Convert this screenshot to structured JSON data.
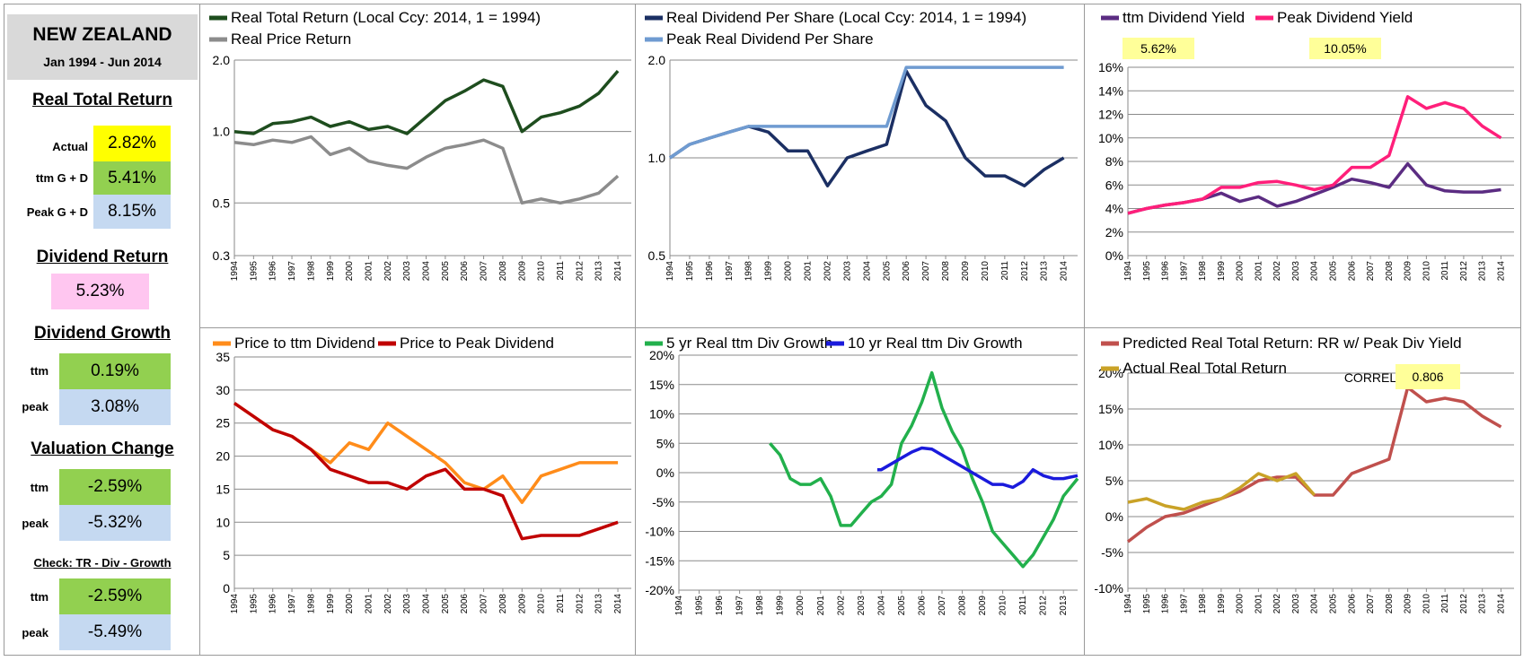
{
  "summary": {
    "country": "NEW ZEALAND",
    "period": "Jan 1994 - Jun 2014",
    "real_total_return": {
      "heading": "Real Total Return",
      "rows": [
        {
          "label": "Actual",
          "value": "2.82%",
          "color": "#ffff00"
        },
        {
          "label": "ttm  G + D",
          "value": "5.41%",
          "color": "#92d050"
        },
        {
          "label": "Peak  G + D",
          "value": "8.15%",
          "color": "#c5d9f1"
        }
      ]
    },
    "dividend_return": {
      "heading": "Dividend Return",
      "value": "5.23%",
      "color": "#ffc6f0"
    },
    "dividend_growth": {
      "heading": "Dividend Growth",
      "rows": [
        {
          "label": "ttm",
          "value": "0.19%",
          "color": "#92d050"
        },
        {
          "label": "peak",
          "value": "3.08%",
          "color": "#c5d9f1"
        }
      ]
    },
    "valuation_change": {
      "heading": "Valuation Change",
      "rows": [
        {
          "label": "ttm",
          "value": "-2.59%",
          "color": "#92d050"
        },
        {
          "label": "peak",
          "value": "-5.32%",
          "color": "#c5d9f1"
        }
      ]
    },
    "check": {
      "heading": "Check: TR - Div - Growth",
      "rows": [
        {
          "label": "ttm",
          "value": "-2.59%",
          "color": "#92d050"
        },
        {
          "label": "peak",
          "value": "-5.49%",
          "color": "#c5d9f1"
        }
      ]
    }
  },
  "chart_data": [
    {
      "type": "line",
      "log_scale": true,
      "x": [
        "1994",
        "1995",
        "1996",
        "1997",
        "1998",
        "1999",
        "2000",
        "2001",
        "2002",
        "2003",
        "2004",
        "2005",
        "2006",
        "2007",
        "2008",
        "2009",
        "2010",
        "2011",
        "2012",
        "2013",
        "2014"
      ],
      "y_ticks": [
        "0.3",
        "0.5",
        "1.0",
        "2.0"
      ],
      "ylim": [
        0.3,
        2.0
      ],
      "series": [
        {
          "name": "Real Total Return (Local Ccy: 2014, 1 = 1994)",
          "color": "#1e4d1e",
          "values": [
            1.0,
            0.98,
            1.08,
            1.1,
            1.15,
            1.05,
            1.1,
            1.02,
            1.05,
            0.98,
            1.15,
            1.35,
            1.48,
            1.65,
            1.55,
            1.0,
            1.15,
            1.2,
            1.28,
            1.45,
            1.8
          ]
        },
        {
          "name": "Real Price Return",
          "color": "#8c8c8c",
          "values": [
            0.9,
            0.88,
            0.92,
            0.9,
            0.95,
            0.8,
            0.85,
            0.75,
            0.72,
            0.7,
            0.78,
            0.85,
            0.88,
            0.92,
            0.85,
            0.5,
            0.52,
            0.5,
            0.52,
            0.55,
            0.65
          ]
        }
      ]
    },
    {
      "type": "line",
      "log_scale": true,
      "x": [
        "1994",
        "1995",
        "1996",
        "1997",
        "1998",
        "1999",
        "2000",
        "2001",
        "2002",
        "2003",
        "2004",
        "2005",
        "2006",
        "2007",
        "2008",
        "2009",
        "2010",
        "2011",
        "2012",
        "2013",
        "2014"
      ],
      "y_ticks": [
        "0.5",
        "1.0",
        "2.0"
      ],
      "ylim": [
        0.5,
        2.0
      ],
      "series": [
        {
          "name": "Real Dividend Per Share (Local Ccy: 2014, 1 = 1994)",
          "color": "#1b2f63",
          "values": [
            1.0,
            1.1,
            1.15,
            1.2,
            1.25,
            1.2,
            1.05,
            1.05,
            0.82,
            1.0,
            1.05,
            1.1,
            1.85,
            1.45,
            1.3,
            1.0,
            0.88,
            0.88,
            0.82,
            0.92,
            1.0
          ]
        },
        {
          "name": "Peak Real Dividend Per Share",
          "color": "#6f9bd1",
          "values": [
            1.0,
            1.1,
            1.15,
            1.2,
            1.25,
            1.25,
            1.25,
            1.25,
            1.25,
            1.25,
            1.25,
            1.25,
            1.9,
            1.9,
            1.9,
            1.9,
            1.9,
            1.9,
            1.9,
            1.9,
            1.9
          ]
        }
      ]
    },
    {
      "type": "line",
      "x": [
        "1994",
        "1995",
        "1996",
        "1997",
        "1998",
        "1999",
        "2000",
        "2001",
        "2002",
        "2003",
        "2004",
        "2005",
        "2006",
        "2007",
        "2008",
        "2009",
        "2010",
        "2011",
        "2012",
        "2013",
        "2014"
      ],
      "y_ticks": [
        "0%",
        "2%",
        "4%",
        "6%",
        "8%",
        "10%",
        "12%",
        "14%",
        "16%"
      ],
      "ylim": [
        0,
        16
      ],
      "annotations": [
        {
          "text": "5.62%"
        },
        {
          "text": "10.05%"
        }
      ],
      "series": [
        {
          "name": "ttm Dividend Yield",
          "color": "#5b2c82",
          "values": [
            3.6,
            4.0,
            4.3,
            4.5,
            4.8,
            5.3,
            4.6,
            5.0,
            4.2,
            4.6,
            5.2,
            5.8,
            6.5,
            6.2,
            5.8,
            7.8,
            6.0,
            5.5,
            5.4,
            5.4,
            5.6
          ]
        },
        {
          "name": "Peak Dividend Yield",
          "color": "#ff1f7a",
          "values": [
            3.6,
            4.0,
            4.3,
            4.5,
            4.8,
            5.8,
            5.8,
            6.2,
            6.3,
            6.0,
            5.6,
            6.0,
            7.5,
            7.5,
            8.5,
            13.5,
            12.5,
            13.0,
            12.5,
            11.0,
            10.0
          ]
        }
      ]
    },
    {
      "type": "line",
      "x": [
        "1994",
        "1995",
        "1996",
        "1997",
        "1998",
        "1999",
        "2000",
        "2001",
        "2002",
        "2003",
        "2004",
        "2005",
        "2006",
        "2007",
        "2008",
        "2009",
        "2010",
        "2011",
        "2012",
        "2013",
        "2014"
      ],
      "y_ticks": [
        "0",
        "5",
        "10",
        "15",
        "20",
        "25",
        "30",
        "35"
      ],
      "ylim": [
        0,
        35
      ],
      "series": [
        {
          "name": "Price to ttm Dividend",
          "color": "#ff8c1a",
          "values": [
            28,
            26,
            24,
            23,
            21,
            19,
            22,
            21,
            25,
            23,
            21,
            19,
            16,
            15,
            17,
            13,
            17,
            18,
            19,
            19,
            19
          ]
        },
        {
          "name": "Price to Peak Dividend",
          "color": "#c00000",
          "values": [
            28,
            26,
            24,
            23,
            21,
            18,
            17,
            16,
            16,
            15,
            17,
            18,
            15,
            15,
            14,
            7.5,
            8,
            8,
            8,
            9,
            10
          ]
        }
      ]
    },
    {
      "type": "line",
      "x": [
        "1994",
        "1995",
        "1996",
        "1997",
        "1998",
        "1999",
        "2000",
        "2001",
        "2002",
        "2003",
        "2004",
        "2005",
        "2006",
        "2007",
        "2008",
        "2009",
        "2010",
        "2011",
        "2012",
        "2013"
      ],
      "y_ticks": [
        "-20%",
        "-15%",
        "-10%",
        "-5%",
        "0%",
        "5%",
        "10%",
        "15%",
        "20%"
      ],
      "ylim": [
        -20,
        20
      ],
      "series": [
        {
          "name": "5 yr Real ttm Div Growth",
          "color": "#22b04c",
          "x_values": [
            1998.5,
            1999,
            1999.5,
            2000,
            2000.5,
            2001,
            2001.5,
            2002,
            2002.5,
            2003,
            2003.5,
            2004,
            2004.5,
            2005,
            2005.5,
            2006,
            2006.5,
            2007,
            2007.5,
            2008,
            2008.5,
            2009,
            2009.5,
            2010,
            2010.5,
            2011,
            2011.5,
            2012,
            2012.5,
            2013,
            2013.7
          ],
          "values": [
            5,
            3,
            -1,
            -2,
            -2,
            -1,
            -4,
            -9,
            -9,
            -7,
            -5,
            -4,
            -2,
            5,
            8,
            12,
            17,
            11,
            7,
            4,
            -1,
            -5,
            -10,
            -12,
            -14,
            -16,
            -14,
            -11,
            -8,
            -4,
            -1
          ]
        },
        {
          "name": "10 yr Real ttm Div Growth",
          "color": "#1a1adc",
          "x_values": [
            2003.8,
            2004,
            2004.5,
            2005,
            2005.5,
            2006,
            2006.5,
            2007,
            2007.5,
            2008,
            2008.5,
            2009,
            2009.5,
            2010,
            2010.5,
            2011,
            2011.5,
            2012,
            2012.5,
            2013,
            2013.7
          ],
          "values": [
            0.5,
            0.5,
            1.5,
            2.5,
            3.5,
            4.2,
            4.0,
            3.0,
            2.0,
            1.0,
            0,
            -1,
            -2,
            -2,
            -2.5,
            -1.5,
            0.5,
            -0.5,
            -1,
            -1,
            -0.5
          ]
        }
      ]
    },
    {
      "type": "line",
      "x": [
        "1994",
        "1995",
        "1996",
        "1997",
        "1998",
        "1999",
        "2000",
        "2001",
        "2002",
        "2003",
        "2004",
        "2005",
        "2006",
        "2007",
        "2008",
        "2009",
        "2010",
        "2011",
        "2012",
        "2013",
        "2014"
      ],
      "y_ticks": [
        "-10%",
        "-5%",
        "0%",
        "5%",
        "10%",
        "15%",
        "20%"
      ],
      "ylim": [
        -10,
        20
      ],
      "annotations": [
        {
          "text": "CORREL"
        },
        {
          "text": "0.806"
        }
      ],
      "series": [
        {
          "name": "Predicted Real Total Return: RR w/ Peak Div Yield",
          "color": "#c0504d",
          "values": [
            -3.5,
            -1.5,
            0,
            0.5,
            1.5,
            2.5,
            3.5,
            5,
            5.5,
            5.5,
            3,
            3,
            6,
            7,
            8,
            18,
            16,
            16.5,
            16,
            14,
            12.5
          ]
        },
        {
          "name": "Actual Real Total Return",
          "color": "#c9a227",
          "values": [
            2,
            2.5,
            1.5,
            1,
            2,
            2.5,
            4,
            6,
            5,
            6,
            3,
            null,
            null,
            null,
            null,
            null,
            null,
            null,
            null,
            null,
            null
          ]
        }
      ]
    }
  ]
}
